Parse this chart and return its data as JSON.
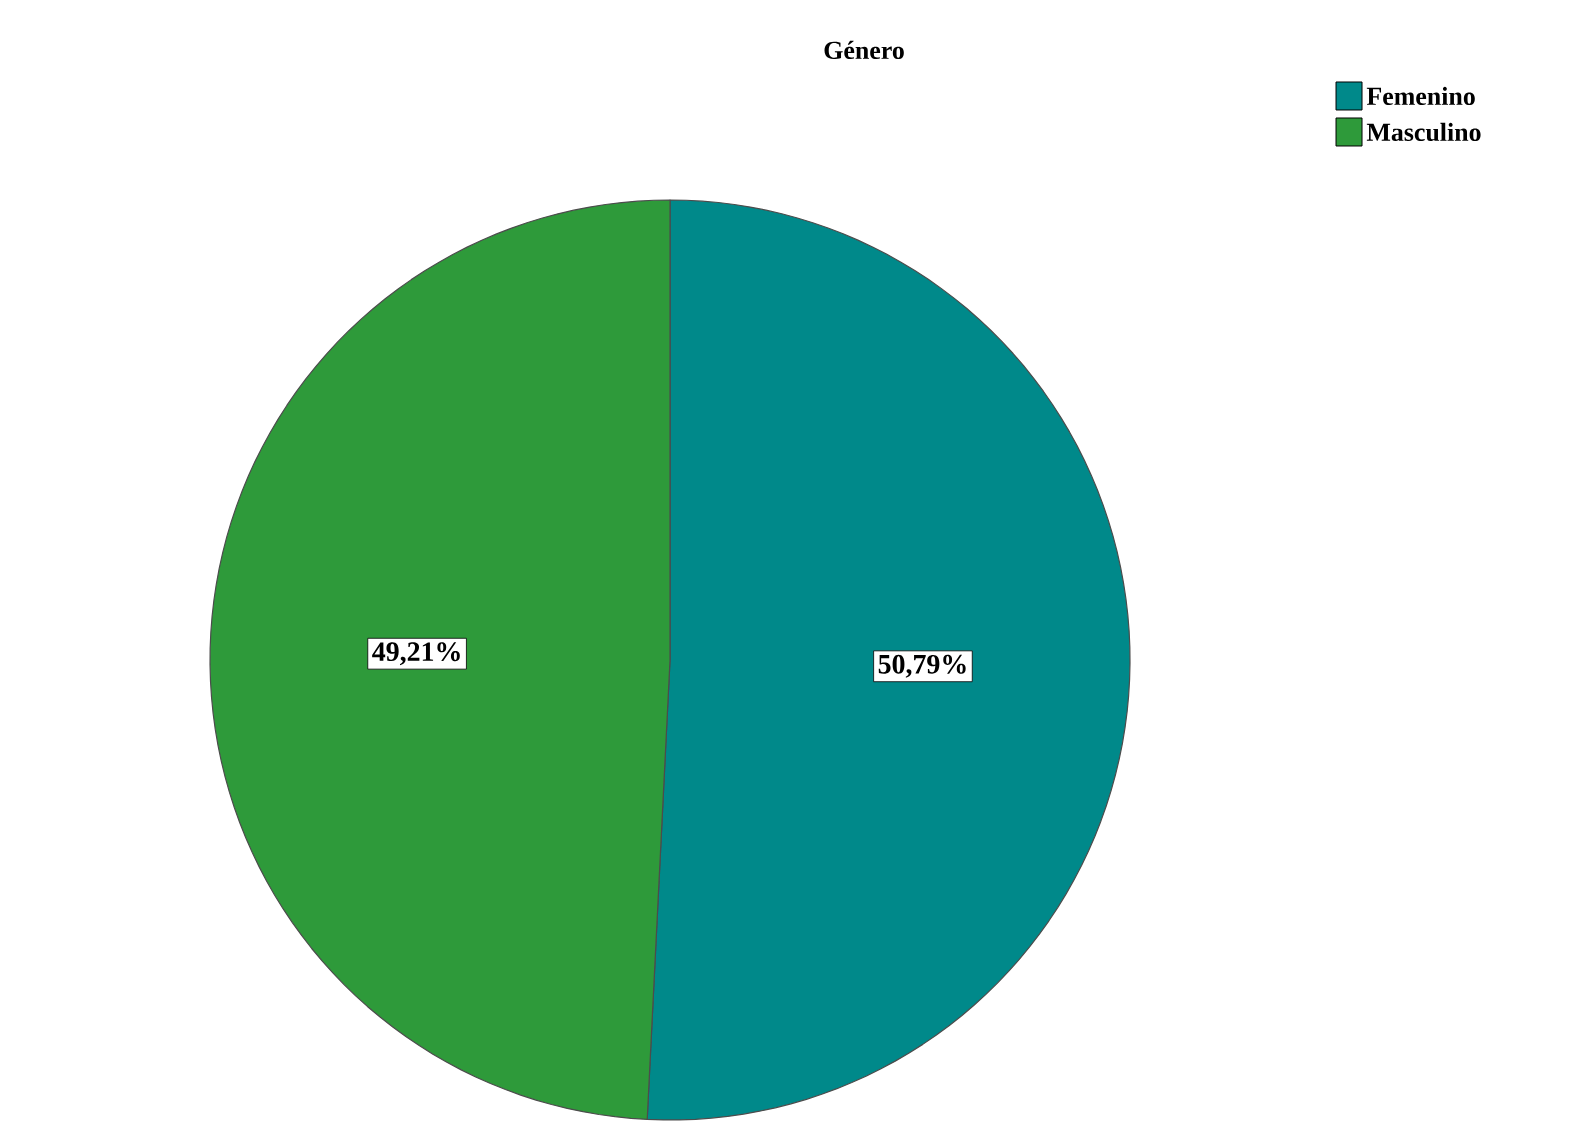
{
  "chart_data": {
    "type": "pie",
    "title": "Género",
    "categories": [
      "Femenino",
      "Masculino"
    ],
    "values": [
      50.79,
      49.21
    ],
    "colors": [
      "#00898a",
      "#2e9a3a"
    ],
    "value_labels": [
      "50,79%",
      "49,21%"
    ],
    "legend": "top right"
  }
}
